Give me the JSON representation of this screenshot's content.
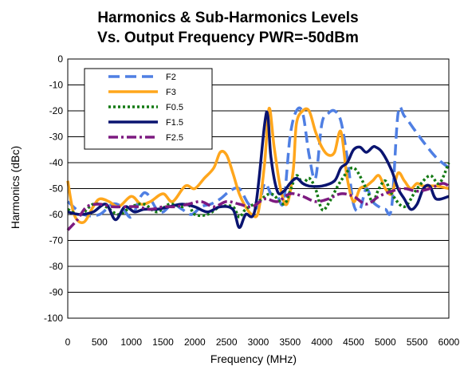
{
  "chart_data": {
    "type": "line",
    "title_lines": [
      "Harmonics & Sub-Harmonics Levels",
      "Vs. Output Frequency PWR=-50dBm"
    ],
    "xlabel": "Frequency (MHz)",
    "ylabel": "Harmonics (dBc)",
    "xlim": [
      0,
      6000
    ],
    "ylim": [
      -100,
      0
    ],
    "xticks": [
      0,
      500,
      1000,
      1500,
      2000,
      2500,
      3000,
      3500,
      4000,
      4500,
      5000,
      5500,
      6000
    ],
    "yticks": [
      0,
      -10,
      -20,
      -30,
      -40,
      -50,
      -60,
      -70,
      -80,
      -90,
      -100
    ],
    "grid": "horizontal",
    "legend_position": "top-left",
    "series": [
      {
        "name": "F2",
        "color": "#4f7fe3",
        "dash": "dash",
        "points": [
          [
            0,
            -55
          ],
          [
            250,
            -60
          ],
          [
            500,
            -60
          ],
          [
            700,
            -56
          ],
          [
            850,
            -57
          ],
          [
            1000,
            -61
          ],
          [
            1150,
            -53
          ],
          [
            1250,
            -52
          ],
          [
            1400,
            -58
          ],
          [
            1500,
            -59
          ],
          [
            1650,
            -56
          ],
          [
            1800,
            -58
          ],
          [
            1950,
            -60
          ],
          [
            2100,
            -57
          ],
          [
            2250,
            -56
          ],
          [
            2400,
            -54
          ],
          [
            2550,
            -51
          ],
          [
            2700,
            -50
          ],
          [
            2850,
            -56
          ],
          [
            3000,
            -57
          ],
          [
            3100,
            -48
          ],
          [
            3200,
            -52
          ],
          [
            3300,
            -53
          ],
          [
            3400,
            -55
          ],
          [
            3500,
            -30
          ],
          [
            3600,
            -20
          ],
          [
            3700,
            -21
          ],
          [
            3800,
            -37
          ],
          [
            3900,
            -46
          ],
          [
            4000,
            -25
          ],
          [
            4100,
            -21
          ],
          [
            4200,
            -20
          ],
          [
            4300,
            -24
          ],
          [
            4400,
            -38
          ],
          [
            4500,
            -56
          ],
          [
            4600,
            -58
          ],
          [
            4700,
            -50
          ],
          [
            4800,
            -55
          ],
          [
            4900,
            -57
          ],
          [
            5000,
            -58
          ],
          [
            5100,
            -57
          ],
          [
            5200,
            -21
          ],
          [
            5300,
            -22
          ],
          [
            5450,
            -27
          ],
          [
            5600,
            -32
          ],
          [
            5800,
            -38
          ],
          [
            6000,
            -42
          ]
        ]
      },
      {
        "name": "F3",
        "color": "#ffa61c",
        "dash": "solid",
        "points": [
          [
            0,
            -47
          ],
          [
            100,
            -60
          ],
          [
            250,
            -63
          ],
          [
            400,
            -57
          ],
          [
            500,
            -54
          ],
          [
            650,
            -55
          ],
          [
            800,
            -57
          ],
          [
            1000,
            -53
          ],
          [
            1150,
            -56
          ],
          [
            1300,
            -55
          ],
          [
            1500,
            -52
          ],
          [
            1650,
            -55
          ],
          [
            1850,
            -49
          ],
          [
            2000,
            -50
          ],
          [
            2150,
            -46
          ],
          [
            2300,
            -42
          ],
          [
            2400,
            -36
          ],
          [
            2500,
            -37
          ],
          [
            2600,
            -44
          ],
          [
            2700,
            -52
          ],
          [
            2800,
            -57
          ],
          [
            2900,
            -60
          ],
          [
            3000,
            -59
          ],
          [
            3100,
            -40
          ],
          [
            3170,
            -19
          ],
          [
            3250,
            -34
          ],
          [
            3350,
            -50
          ],
          [
            3450,
            -56
          ],
          [
            3550,
            -43
          ],
          [
            3600,
            -25
          ],
          [
            3700,
            -20
          ],
          [
            3800,
            -20
          ],
          [
            3900,
            -28
          ],
          [
            4000,
            -34
          ],
          [
            4100,
            -37
          ],
          [
            4200,
            -36
          ],
          [
            4300,
            -28
          ],
          [
            4400,
            -46
          ],
          [
            4500,
            -55
          ],
          [
            4600,
            -50
          ],
          [
            4700,
            -49
          ],
          [
            4800,
            -47
          ],
          [
            4900,
            -45
          ],
          [
            5000,
            -50
          ],
          [
            5100,
            -52
          ],
          [
            5200,
            -44
          ],
          [
            5300,
            -47
          ],
          [
            5400,
            -50
          ],
          [
            5500,
            -48
          ],
          [
            5600,
            -49
          ],
          [
            5800,
            -49
          ],
          [
            6000,
            -50
          ]
        ]
      },
      {
        "name": "F0.5",
        "color": "#147a14",
        "dash": "dot",
        "points": [
          [
            0,
            -58
          ],
          [
            200,
            -60
          ],
          [
            400,
            -56
          ],
          [
            600,
            -57
          ],
          [
            800,
            -60
          ],
          [
            1000,
            -57
          ],
          [
            1200,
            -56
          ],
          [
            1400,
            -59
          ],
          [
            1600,
            -56
          ],
          [
            1800,
            -57
          ],
          [
            1900,
            -56
          ],
          [
            2000,
            -60
          ],
          [
            2200,
            -60
          ],
          [
            2400,
            -57
          ],
          [
            2600,
            -57
          ],
          [
            2700,
            -61
          ],
          [
            2800,
            -58
          ],
          [
            3000,
            -55
          ],
          [
            3200,
            -52
          ],
          [
            3400,
            -56
          ],
          [
            3500,
            -51
          ],
          [
            3600,
            -45
          ],
          [
            3700,
            -48
          ],
          [
            3800,
            -46
          ],
          [
            3900,
            -50
          ],
          [
            4000,
            -58
          ],
          [
            4100,
            -56
          ],
          [
            4300,
            -47
          ],
          [
            4500,
            -42
          ],
          [
            4700,
            -50
          ],
          [
            4800,
            -55
          ],
          [
            4900,
            -50
          ],
          [
            5000,
            -47
          ],
          [
            5100,
            -52
          ],
          [
            5300,
            -57
          ],
          [
            5500,
            -50
          ],
          [
            5700,
            -45
          ],
          [
            5850,
            -48
          ],
          [
            6000,
            -40
          ]
        ]
      },
      {
        "name": "F1.5",
        "color": "#0a1470",
        "dash": "solid",
        "points": [
          [
            0,
            -59
          ],
          [
            200,
            -60
          ],
          [
            400,
            -59
          ],
          [
            600,
            -56
          ],
          [
            750,
            -62
          ],
          [
            900,
            -57
          ],
          [
            1050,
            -59
          ],
          [
            1200,
            -58
          ],
          [
            1400,
            -58
          ],
          [
            1600,
            -57
          ],
          [
            1800,
            -56
          ],
          [
            2000,
            -57
          ],
          [
            2200,
            -59
          ],
          [
            2400,
            -57
          ],
          [
            2600,
            -58
          ],
          [
            2700,
            -65
          ],
          [
            2800,
            -60
          ],
          [
            2950,
            -58
          ],
          [
            3100,
            -25
          ],
          [
            3150,
            -22
          ],
          [
            3200,
            -38
          ],
          [
            3300,
            -51
          ],
          [
            3400,
            -51
          ],
          [
            3500,
            -48
          ],
          [
            3600,
            -46
          ],
          [
            3700,
            -48
          ],
          [
            3800,
            -49
          ],
          [
            4000,
            -49
          ],
          [
            4200,
            -47
          ],
          [
            4300,
            -42
          ],
          [
            4400,
            -40
          ],
          [
            4500,
            -35
          ],
          [
            4600,
            -34
          ],
          [
            4700,
            -36
          ],
          [
            4800,
            -34
          ],
          [
            4850,
            -34
          ],
          [
            4950,
            -36
          ],
          [
            5100,
            -43
          ],
          [
            5200,
            -50
          ],
          [
            5300,
            -54
          ],
          [
            5400,
            -58
          ],
          [
            5500,
            -56
          ],
          [
            5600,
            -50
          ],
          [
            5700,
            -49
          ],
          [
            5800,
            -54
          ],
          [
            6000,
            -53
          ]
        ]
      },
      {
        "name": "F2.5",
        "color": "#7d1a80",
        "dash": "dashdot",
        "points": [
          [
            0,
            -66
          ],
          [
            150,
            -62
          ],
          [
            300,
            -57
          ],
          [
            500,
            -56
          ],
          [
            700,
            -57
          ],
          [
            900,
            -57
          ],
          [
            1100,
            -57
          ],
          [
            1300,
            -58
          ],
          [
            1500,
            -57
          ],
          [
            1700,
            -57
          ],
          [
            1900,
            -56
          ],
          [
            2100,
            -55
          ],
          [
            2300,
            -57
          ],
          [
            2500,
            -55
          ],
          [
            2700,
            -56
          ],
          [
            2900,
            -57
          ],
          [
            3100,
            -54
          ],
          [
            3300,
            -55
          ],
          [
            3500,
            -52
          ],
          [
            3700,
            -53
          ],
          [
            3900,
            -55
          ],
          [
            4100,
            -54
          ],
          [
            4300,
            -52
          ],
          [
            4500,
            -53
          ],
          [
            4700,
            -56
          ],
          [
            4900,
            -53
          ],
          [
            5100,
            -51
          ],
          [
            5300,
            -50
          ],
          [
            5500,
            -51
          ],
          [
            5700,
            -50
          ],
          [
            5900,
            -48
          ],
          [
            6000,
            -49
          ]
        ]
      }
    ]
  }
}
